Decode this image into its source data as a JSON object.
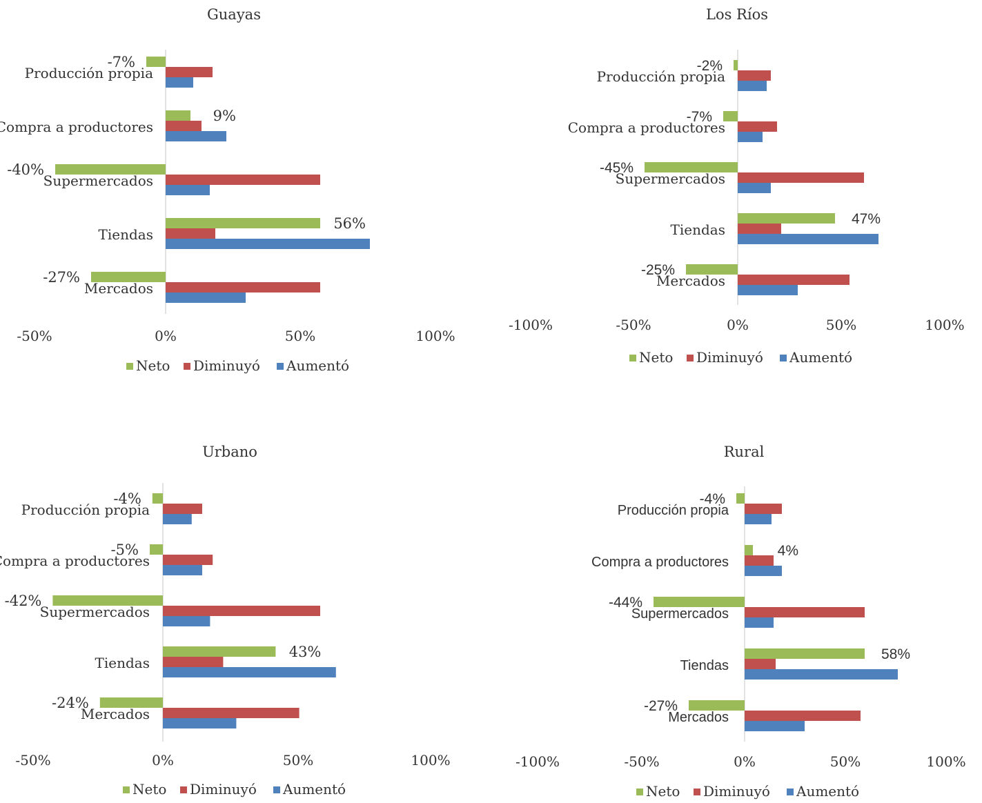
{
  "colors": {
    "Neto": "#9BBB59",
    "Diminuyó": "#C0504D",
    "Aumentó": "#4F81BD",
    "axis": "#D9D9D9",
    "text": "#333333"
  },
  "chart_data": [
    {
      "type": "bar",
      "title": "Guayas",
      "categories": [
        "Producción propia",
        "Compra a productores",
        "Supermercados",
        "Tiendas",
        "Mercados"
      ],
      "series": [
        {
          "name": "Neto",
          "values": [
            -7,
            9,
            -40,
            56,
            -27
          ]
        },
        {
          "name": "Diminuyó",
          "values": [
            17,
            13,
            56,
            18,
            56
          ]
        },
        {
          "name": "Aumentó",
          "values": [
            10,
            22,
            16,
            74,
            29
          ]
        }
      ],
      "data_labels": [
        "-7%",
        "9%",
        "-40%",
        "56%",
        "-27%"
      ],
      "xticks": [
        "-50%",
        "0%",
        "50%",
        "100%"
      ],
      "xlim": [
        -50,
        100
      ],
      "legend": "bottom"
    },
    {
      "type": "bar",
      "title": "Los Ríos",
      "categories": [
        "Producción propia",
        "Compra a productores",
        "Supermercados",
        "Tiendas",
        "Mercados"
      ],
      "series": [
        {
          "name": "Neto",
          "values": [
            -2,
            -7,
            -45,
            47,
            -25
          ]
        },
        {
          "name": "Diminuyó",
          "values": [
            16,
            19,
            61,
            21,
            54
          ]
        },
        {
          "name": "Aumentó",
          "values": [
            14,
            12,
            16,
            68,
            29
          ]
        }
      ],
      "data_labels": [
        "-2%",
        "-7%",
        "-45%",
        "47%",
        "-25%"
      ],
      "xticks": [
        "-100%",
        "-50%",
        "0%",
        "50%",
        "100%"
      ],
      "xlim": [
        -100,
        100
      ],
      "legend": "bottom"
    },
    {
      "type": "bar",
      "title": "Urbano",
      "categories": [
        "Producción propia",
        "Compra a productores",
        "Supermercados",
        "Tiendas",
        "Mercados"
      ],
      "series": [
        {
          "name": "Neto",
          "values": [
            -4,
            -5,
            -42,
            43,
            -24
          ]
        },
        {
          "name": "Diminuyó",
          "values": [
            15,
            19,
            60,
            23,
            52
          ]
        },
        {
          "name": "Aumentó",
          "values": [
            11,
            15,
            18,
            66,
            28
          ]
        }
      ],
      "data_labels": [
        "-4%",
        "-5%",
        "-42%",
        "43%",
        "-24%"
      ],
      "xticks": [
        "-50%",
        "0%",
        "50%",
        "100%"
      ],
      "xlim": [
        -50,
        100
      ],
      "legend": "bottom"
    },
    {
      "type": "bar",
      "title": "Rural",
      "categories": [
        "Producción propia",
        "Compra a productores",
        "Supermercados",
        "Tiendas",
        "Mercados"
      ],
      "series": [
        {
          "name": "Neto",
          "values": [
            -4,
            4,
            -44,
            58,
            -27
          ]
        },
        {
          "name": "Diminuyó",
          "values": [
            18,
            14,
            58,
            15,
            56
          ]
        },
        {
          "name": "Aumentó",
          "values": [
            13,
            18,
            14,
            74,
            29
          ]
        }
      ],
      "data_labels": [
        "-4%",
        "4%",
        "-44%",
        "58%",
        "-27%"
      ],
      "xticks": [
        "-100%",
        "-50%",
        "0%",
        "50%",
        "100%"
      ],
      "xlim": [
        -100,
        100
      ],
      "legend": "bottom"
    }
  ]
}
